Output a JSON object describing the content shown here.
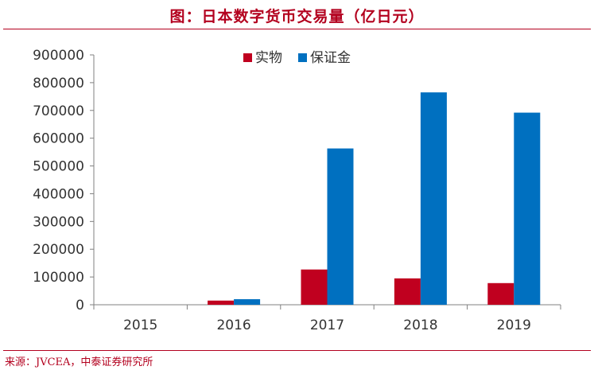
{
  "title": "图：日本数字货币交易量（亿日元）",
  "source": "来源：JVCEA，中泰证券研究所",
  "chart_data": {
    "type": "bar",
    "title": "图：日本数字货币交易量（亿日元）",
    "xlabel": "",
    "ylabel": "",
    "categories": [
      "2015",
      "2016",
      "2017",
      "2018",
      "2019"
    ],
    "ylim": [
      0,
      900000
    ],
    "yticks": [
      "0",
      "100000",
      "200000",
      "300000",
      "400000",
      "500000",
      "600000",
      "700000",
      "800000",
      "900000"
    ],
    "legend_position": "top-center",
    "grid": false,
    "series": [
      {
        "name": "实物",
        "color": "#c0001f",
        "values": [
          0,
          15000,
          127000,
          95000,
          78000
        ]
      },
      {
        "name": "保证金",
        "color": "#0070c0",
        "values": [
          0,
          20000,
          563000,
          765000,
          692000
        ]
      }
    ]
  }
}
